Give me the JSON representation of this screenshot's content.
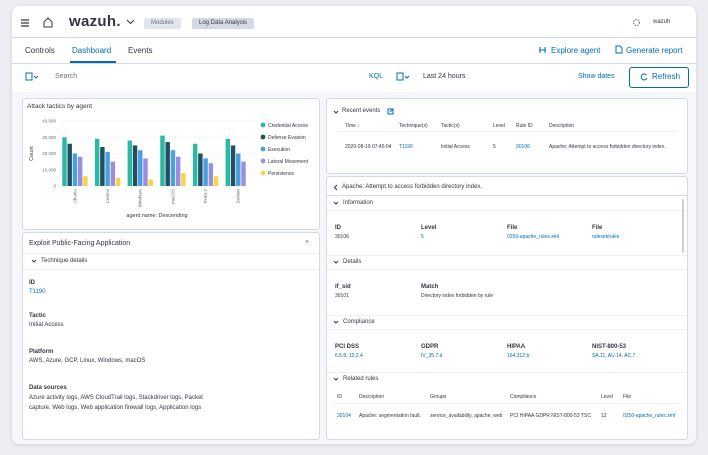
{
  "header": {
    "brand": "wazuh.",
    "breadcrumbs": [
      "Modules",
      "Log Data Analysis"
    ],
    "user": "wazuh"
  },
  "tabs": [
    "Controls",
    "Dashboard",
    "Events"
  ],
  "actions": [
    "Explore agent",
    "Generate report"
  ],
  "search": {
    "placeholder": "Search",
    "language": "KQL",
    "date_range": "Last 24 hours",
    "show_dates": "Show dates",
    "refresh": "Refresh"
  },
  "chart_data": {
    "type": "bar",
    "title": "Attack tactics by agent",
    "x_label": "agent.name: Descending",
    "y_label": "Count",
    "categories": [
      "Ubuntu",
      "Centos",
      "Windows",
      "macOS",
      "RHEL7",
      "Debian"
    ],
    "series": [
      {
        "name": "Credential Access",
        "color": "#2bb9a3",
        "values": [
          30000,
          29000,
          28000,
          31000,
          26000,
          29000
        ]
      },
      {
        "name": "Defense Evasion",
        "color": "#1f5163",
        "values": [
          26000,
          24000,
          25000,
          27000,
          20000,
          25000
        ]
      },
      {
        "name": "Execution",
        "color": "#4a9fe0",
        "values": [
          20000,
          21000,
          22000,
          22000,
          17000,
          20000
        ]
      },
      {
        "name": "Lateral Movement",
        "color": "#9a8fdc",
        "values": [
          18000,
          15000,
          17000,
          18000,
          14000,
          15000
        ]
      },
      {
        "name": "Persistence",
        "color": "#f6d54a",
        "values": [
          6000,
          5000,
          4000,
          8000,
          6000,
          0
        ]
      }
    ],
    "ylim": [
      0,
      40000
    ],
    "yticks": [
      0,
      {
        "value": 10000,
        "label": "10,000"
      },
      {
        "value": 20000,
        "label": "20,000"
      },
      {
        "value": 30000,
        "label": "30,000"
      },
      {
        "value": 40000,
        "label": "40,000"
      }
    ],
    "grid": true
  },
  "technique": {
    "title": "Exploit Public-Facing Application",
    "section": "Technique details",
    "fields": [
      {
        "label": "ID",
        "value": "T1190"
      },
      {
        "label": "Tactic",
        "value": "Initial Access"
      },
      {
        "label": "Platform",
        "value": "AWS, Azure, GCP, Linux, Windows, macOS"
      },
      {
        "label": "Data sources",
        "value": "Azure activity logs, AWS CloudTrail logs, Stackdriver logs, Packet capture, Web logs, Web application firewall logs, Application logs"
      }
    ]
  },
  "recent_events": {
    "title": "Recent events",
    "columns": [
      "Time ↓",
      "Technique(s)",
      "Tactic(s)",
      "Level",
      "Rule ID",
      "Description"
    ],
    "rows": [
      [
        "2020-08-19 07:45:04",
        "T1190",
        "Initial Access",
        "5",
        "30106",
        "Apache: Attempt to access forbidden directory index."
      ]
    ]
  },
  "rule_detail": {
    "title": "Apache: Attempt to access forbidden directory index.",
    "information": {
      "title": "Information",
      "fields": [
        {
          "label": "ID",
          "value": "30106"
        },
        {
          "label": "Level",
          "value": "5"
        },
        {
          "label": "File",
          "value": "0250-apache_rules.xml"
        },
        {
          "label": "File",
          "value": "ruleset/rules"
        }
      ]
    },
    "details": {
      "title": "Details",
      "fields": [
        {
          "label": "if_sid",
          "value": "30101"
        },
        {
          "label": "Match",
          "value": "Directory index forbidden by rule"
        }
      ]
    },
    "compliance": {
      "title": "Compliance",
      "fields": [
        {
          "label": "PCI DSS",
          "value": "6.5.8, 10.2.4"
        },
        {
          "label": "GDPR",
          "value": "IV_35.7.d"
        },
        {
          "label": "HIPAA",
          "value": "164.312.b"
        },
        {
          "label": "NIST-800-53",
          "value": "SA.11, AU.14, AC.7"
        }
      ]
    },
    "related": {
      "title": "Related rules",
      "columns": [
        "ID",
        "Description",
        "Groups",
        "Compliance",
        "Level",
        "File"
      ],
      "rows": [
        [
          "30104",
          "Apache: segmentation fault.",
          "service_availability, apache, web",
          "PCI HIPAA GDPR NIST-800-53 TSC",
          "12",
          "0250-apache_rules.xml"
        ]
      ]
    }
  }
}
